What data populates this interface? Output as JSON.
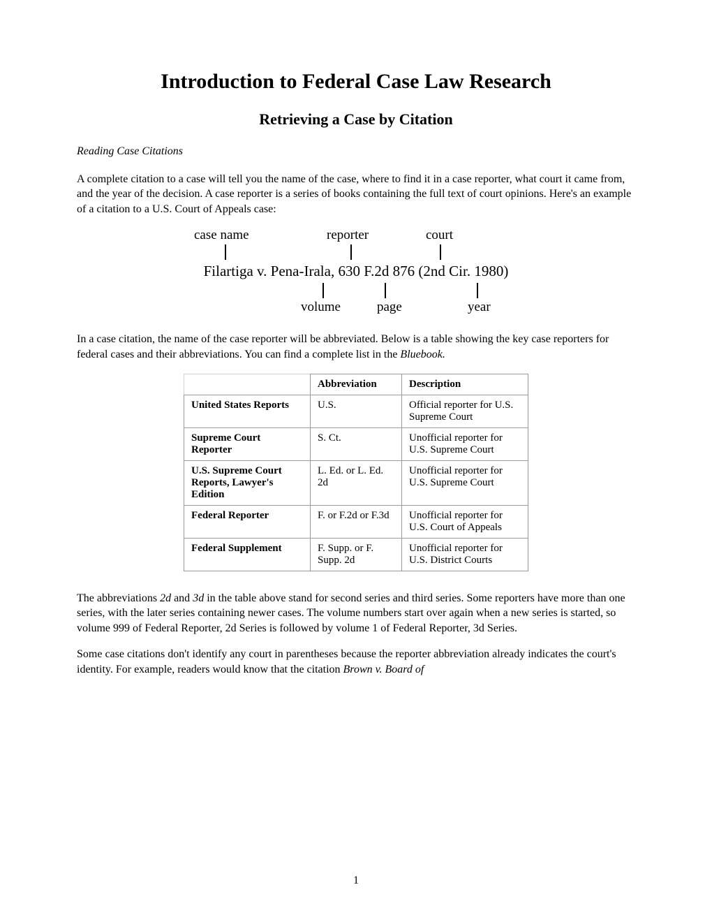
{
  "title": "Introduction to Federal Case Law Research",
  "subtitle": "Retrieving a Case by Citation",
  "section_heading": "Reading Case Citations",
  "para1": "A complete citation to a case will tell you the name of the case, where to find it in a case reporter, what court it came from, and the year of the decision.  A case reporter is a series of books containing the full text of court opinions.  Here's an example of a citation to a U.S. Court of Appeals case:",
  "diagram": {
    "top_labels": {
      "case_name": "case name",
      "reporter": "reporter",
      "court": "court"
    },
    "citation": "Filartiga v. Pena-Irala, 630 F.2d 876 (2nd Cir. 1980)",
    "bottom_labels": {
      "volume": "volume",
      "page": "page",
      "year": "year"
    },
    "positions": {
      "top_case_name_label": 38,
      "top_case_name_tick": 82,
      "top_reporter_label": 228,
      "top_reporter_tick": 262,
      "top_court_label": 370,
      "top_court_tick": 390,
      "bot_volume_label": 191,
      "bot_volume_tick": 222,
      "bot_page_label": 300,
      "bot_page_tick": 311,
      "bot_year_label": 430,
      "bot_year_tick": 443
    }
  },
  "para2_a": "In a case citation, the name of the case reporter will be abbreviated.  Below is a table showing the key case reporters for federal cases and their abbreviations.  You can find a complete list in the ",
  "para2_b": "Bluebook.",
  "table": {
    "headers": {
      "abbr": "Abbreviation",
      "desc": "Description"
    },
    "rows": [
      {
        "name": "United States Reports",
        "abbr": "U.S.",
        "desc": "Official reporter for U.S. Supreme Court"
      },
      {
        "name": "Supreme Court Reporter",
        "abbr": "S. Ct.",
        "desc": "Unofficial reporter for U.S. Supreme Court"
      },
      {
        "name": "U.S. Supreme Court Reports, Lawyer's Edition",
        "abbr": "L. Ed. or L. Ed. 2d",
        "desc": "Unofficial reporter for U.S. Supreme Court"
      },
      {
        "name": "Federal Reporter",
        "abbr": "F. or F.2d or F.3d",
        "desc": "Unofficial reporter for U.S. Court of Appeals"
      },
      {
        "name": "Federal Supplement",
        "abbr": "F. Supp. or F. Supp. 2d",
        "desc": "Unofficial reporter for U.S. District Courts"
      }
    ]
  },
  "para3_a": "The abbreviations ",
  "para3_b": "2d",
  "para3_c": " and ",
  "para3_d": "3d",
  "para3_e": " in the table above stand for second series and third series.   Some reporters have more than one series, with the later series containing newer cases.  The volume numbers start over again when a new series is started, so volume 999 of Federal Reporter, 2d Series is followed by volume 1 of Federal Reporter, 3d Series.",
  "para4_a": "Some case citations don't identify any court in parentheses because the reporter abbreviation already indicates the court's identity.  For example, readers would know that the citation ",
  "para4_b": "Brown v. Board of",
  "page_number": "1"
}
